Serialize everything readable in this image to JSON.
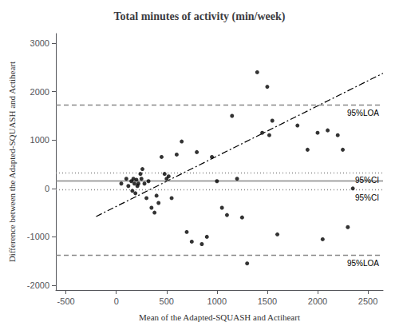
{
  "chart_data": {
    "type": "scatter",
    "title": "Total minutes of activity (min/week)",
    "xlabel": "Mean of the Adapted-SQUASH and Actiheart",
    "ylabel": "Difference between the Adapted-SQUASH and Actiheart",
    "xlim": [
      -600,
      2650
    ],
    "xticks": [
      -500,
      0,
      500,
      1000,
      1500,
      2000,
      2500
    ],
    "ylim": [
      -2100,
      3200
    ],
    "yticks": [
      -2000,
      -1000,
      0,
      1000,
      2000,
      3000
    ],
    "grid": false,
    "color": "#000000",
    "marker": "circle",
    "x": [
      50,
      100,
      120,
      150,
      160,
      170,
      180,
      190,
      200,
      210,
      220,
      240,
      250,
      260,
      280,
      300,
      320,
      350,
      380,
      400,
      420,
      450,
      480,
      500,
      520,
      550,
      600,
      650,
      700,
      750,
      800,
      850,
      900,
      950,
      1000,
      1050,
      1100,
      1150,
      1200,
      1250,
      1300,
      1400,
      1450,
      1500,
      1520,
      1550,
      1600,
      1800,
      1900,
      2000,
      2050,
      2100,
      2200,
      2250,
      2300,
      2350
    ],
    "values": [
      100,
      200,
      50,
      150,
      -50,
      200,
      100,
      -100,
      180,
      50,
      100,
      300,
      200,
      400,
      100,
      -200,
      150,
      -400,
      -500,
      -150,
      -300,
      650,
      300,
      200,
      250,
      -200,
      700,
      970,
      -900,
      -1100,
      750,
      -1150,
      -1000,
      650,
      150,
      -400,
      -550,
      1500,
      200,
      -600,
      -1550,
      2400,
      1150,
      2100,
      1100,
      1400,
      -950,
      1300,
      800,
      1150,
      -1050,
      1200,
      1100,
      800,
      -800,
      0
    ],
    "hlines": [
      {
        "y": 150,
        "color": "#888888",
        "line_style": "solid"
      },
      {
        "y": 330,
        "color": "#888888",
        "line_style": "dotted",
        "label": "95%CI"
      },
      {
        "y": -30,
        "color": "#888888",
        "line_style": "dotted",
        "label": "95%CI"
      },
      {
        "y": 1720,
        "color": "#888888",
        "line_style": "dashed",
        "label": "95%LOA"
      },
      {
        "y": -1380,
        "color": "#888888",
        "line_style": "dashed",
        "label": "95%LOA"
      }
    ],
    "regression": {
      "x": [
        -200,
        2650
      ],
      "y": [
        -580,
        2380
      ],
      "color": "#000000",
      "line_style": "dashdot"
    }
  }
}
